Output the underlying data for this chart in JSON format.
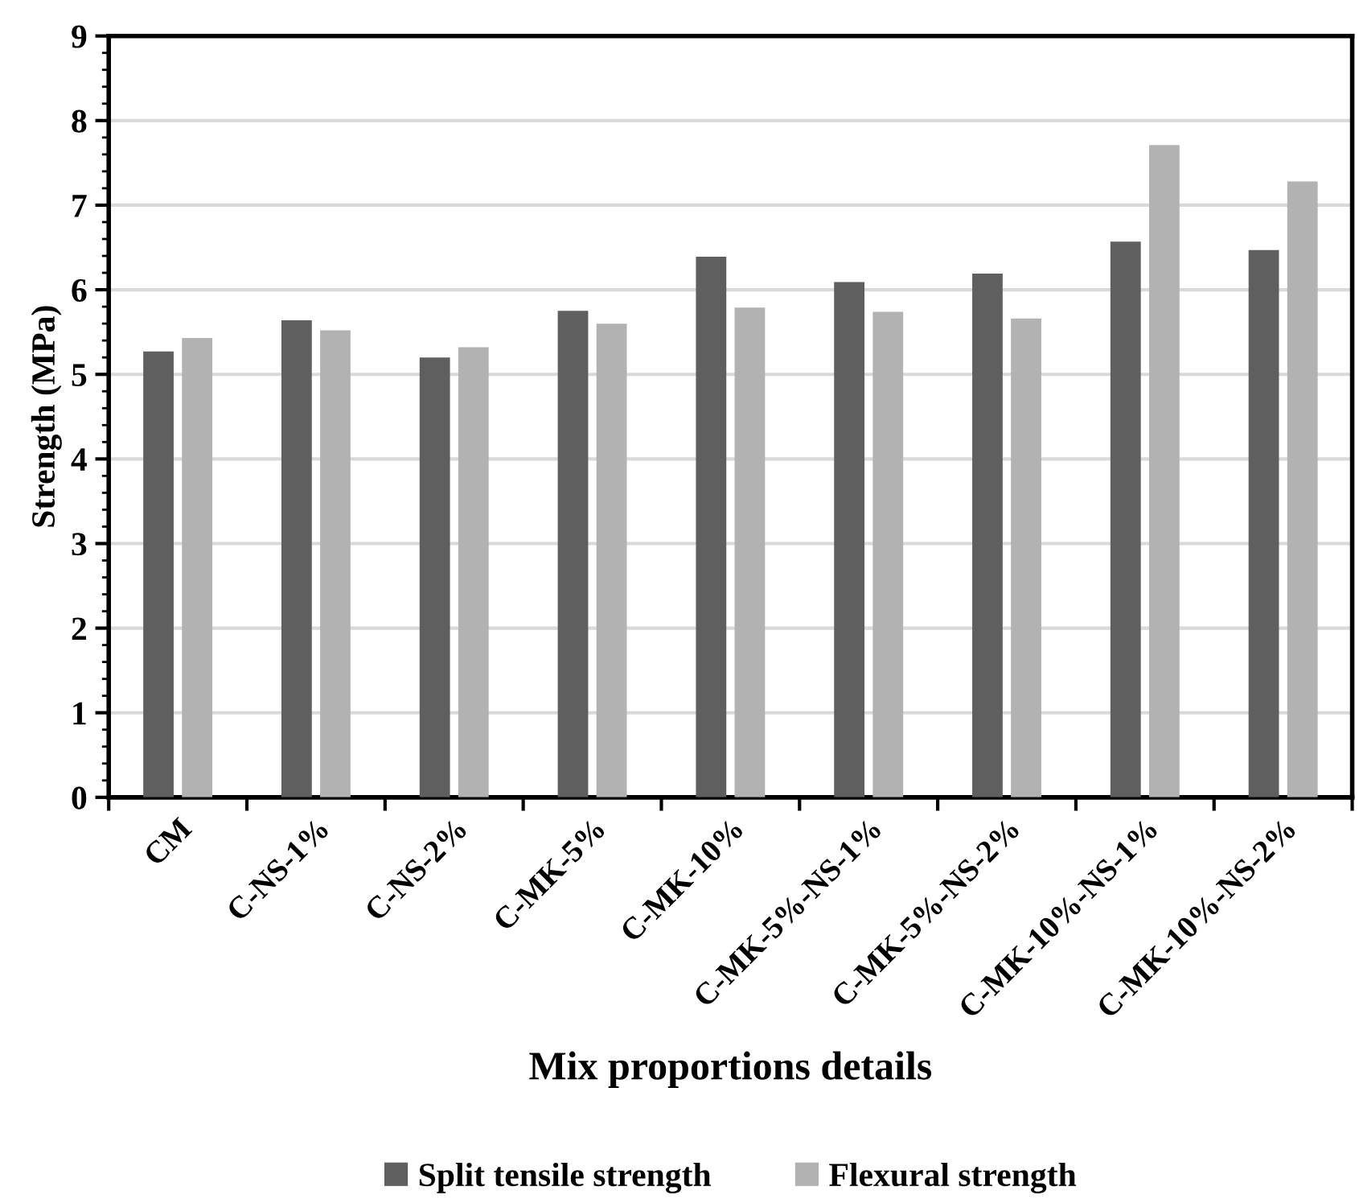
{
  "chart_data": {
    "type": "bar",
    "xlabel": "Mix proportions details",
    "ylabel": "Strength (MPa)",
    "categories": [
      "CM",
      "C-NS-1%",
      "C-NS-2%",
      "C-MK-5%",
      "C-MK-10%",
      "C-MK-5%-NS-1%",
      "C-MK-5%-NS-2%",
      "C-MK-10%-NS-1%",
      "C-MK-10%-NS-2%"
    ],
    "series": [
      {
        "name": "Split tensile strength",
        "color": "#5f5f5f",
        "values": [
          5.27,
          5.64,
          5.2,
          5.75,
          6.39,
          6.09,
          6.19,
          6.57,
          6.47
        ]
      },
      {
        "name": "Flexural strength",
        "color": "#b2b2b2",
        "values": [
          5.43,
          5.52,
          5.32,
          5.6,
          5.79,
          5.74,
          5.66,
          7.71,
          7.28
        ]
      }
    ],
    "ylim": [
      0,
      9
    ],
    "yticks": [
      0,
      1,
      2,
      3,
      4,
      5,
      6,
      7,
      8,
      9
    ],
    "grid": "y",
    "legend": "bottom"
  }
}
